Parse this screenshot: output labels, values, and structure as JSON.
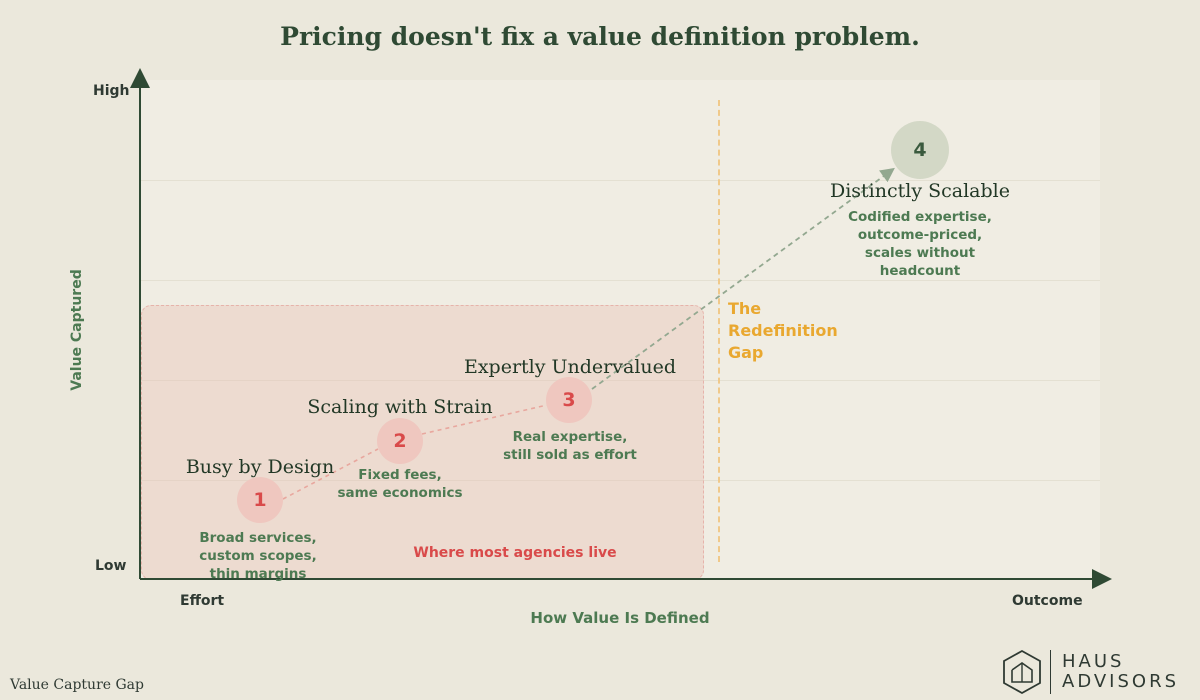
{
  "title": "Pricing doesn't fix a value definition problem.",
  "axes": {
    "x_title": "How Value Is Defined",
    "x_low": "Effort",
    "x_high": "Outcome",
    "y_title": "Value Captured",
    "y_low": "Low",
    "y_high": "High"
  },
  "zone": {
    "label": "Where most agencies live"
  },
  "gap": {
    "lines": [
      "The",
      "Redefinition",
      "Gap"
    ]
  },
  "stages": [
    {
      "number": "1",
      "name": "Busy by Design",
      "desc": [
        "Broad services,",
        "custom scopes,",
        "thin margins"
      ]
    },
    {
      "number": "2",
      "name": "Scaling with Strain",
      "desc": [
        "Fixed fees,",
        "same economics"
      ]
    },
    {
      "number": "3",
      "name": "Expertly Undervalued",
      "desc": [
        "Real expertise,",
        "still sold as effort"
      ]
    },
    {
      "number": "4",
      "name": "Distinctly Scalable",
      "desc": [
        "Codified expertise,",
        "outcome-priced,",
        "scales without",
        "headcount"
      ]
    }
  ],
  "footer": {
    "left_label": "Value Capture Gap"
  },
  "brand": {
    "line1": "HAUS",
    "line2": "ADVISORS"
  },
  "colors": {
    "background": "#ebe8dc",
    "plot": "#f0ede3",
    "dark_green": "#2f4a34",
    "mid_green": "#4d7a52",
    "red": "#d94a4a",
    "pink": "#efc7bf",
    "amber": "#e9a830"
  }
}
